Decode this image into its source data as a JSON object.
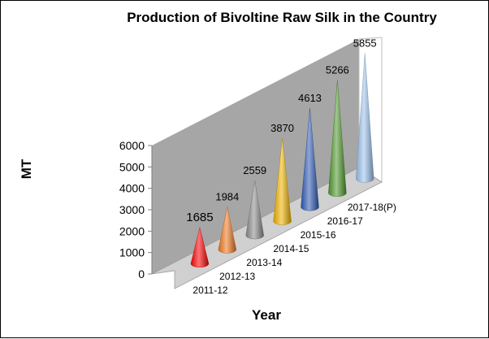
{
  "chart_data": {
    "type": "bar",
    "style": "3d-cone",
    "title": "Production of Bivoltine Raw Silk in the Country",
    "xlabel": "Year",
    "ylabel": "MT",
    "categories": [
      "2011-12",
      "2012-13",
      "2013-14",
      "2014-15",
      "2015-16",
      "2016-17",
      "2017-18(P)"
    ],
    "values": [
      1685,
      1984,
      2559,
      3870,
      4613,
      5266,
      5855
    ],
    "data_labels": [
      "1685",
      "1984",
      "2559",
      "3870",
      "4613",
      "5266",
      "5855"
    ],
    "ylim": [
      0,
      6000
    ],
    "yticks": [
      "0",
      "1000",
      "2000",
      "3000",
      "4000",
      "5000",
      "6000"
    ],
    "grid": false,
    "legend": "none",
    "wall_color": "#a6a6a6",
    "colors": [
      "#ff0000",
      "#f07820",
      "#8c8c8c",
      "#f0b400",
      "#2f5bb7",
      "#4e9a2c",
      "#9cc3ec"
    ]
  }
}
